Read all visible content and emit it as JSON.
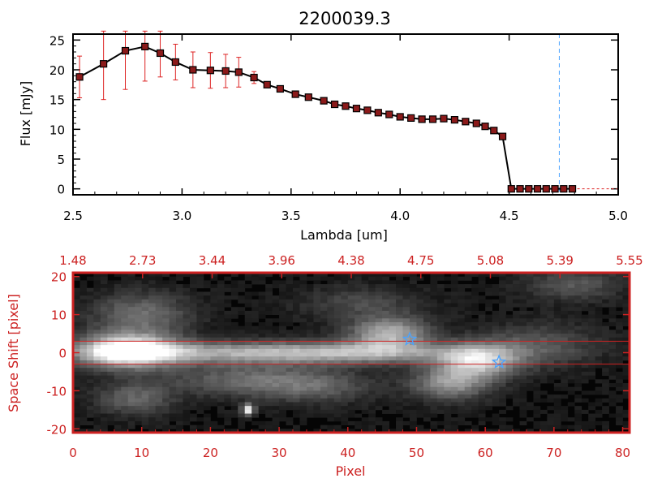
{
  "chart_data": [
    {
      "type": "line",
      "title": "2200039.3",
      "xlabel": "Lambda [um]",
      "ylabel": "Flux [mJy]",
      "xlim": [
        2.5,
        5.0
      ],
      "ylim": [
        -1,
        26
      ],
      "x_ticks": [
        "2.5",
        "3.0",
        "3.5",
        "4.0",
        "4.5",
        "5.0"
      ],
      "y_ticks": [
        "0",
        "5",
        "10",
        "15",
        "20",
        "25"
      ],
      "x": [
        2.53,
        2.64,
        2.74,
        2.83,
        2.9,
        2.97,
        3.05,
        3.13,
        3.2,
        3.26,
        3.33,
        3.39,
        3.45,
        3.52,
        3.58,
        3.65,
        3.7,
        3.75,
        3.8,
        3.85,
        3.9,
        3.95,
        4.0,
        4.05,
        4.1,
        4.15,
        4.2,
        4.25,
        4.3,
        4.35,
        4.39,
        4.43,
        4.47,
        4.51,
        4.55,
        4.59,
        4.63,
        4.67,
        4.71,
        4.75,
        4.79
      ],
      "values": [
        18.8,
        21.0,
        23.2,
        23.9,
        22.8,
        21.3,
        20.0,
        19.9,
        19.8,
        19.6,
        18.7,
        17.5,
        16.8,
        15.9,
        15.4,
        14.8,
        14.2,
        13.9,
        13.5,
        13.2,
        12.8,
        12.5,
        12.1,
        11.9,
        11.7,
        11.7,
        11.8,
        11.6,
        11.3,
        11.0,
        10.5,
        9.8,
        8.8,
        0,
        0,
        0,
        0,
        0,
        0,
        0,
        0
      ],
      "errors": [
        3.5,
        6.0,
        6.5,
        5.8,
        4.0,
        3.0,
        3.0,
        3.0,
        2.8,
        2.5,
        1.0,
        0.5,
        0.5,
        0.5,
        0.4,
        0.4,
        0.4,
        0.4,
        0.4,
        0.4,
        0.4,
        0.4,
        0.4,
        0.4,
        0.4,
        0.4,
        0.4,
        0.4,
        0.4,
        0.4,
        0.4,
        0.4,
        0.4,
        0.2,
        0.2,
        0.2,
        0.2,
        0.2,
        0.2,
        0.2,
        0.2
      ],
      "vline_x": 4.73,
      "grid": false,
      "colors": {
        "line": "#000000",
        "marker": "#8b1a1a",
        "error": "#dd2222",
        "vline": "#4aa3ff"
      }
    },
    {
      "type": "heatmap",
      "xlabel": "Pixel",
      "ylabel": "Space Shift [pixel]",
      "xlim": [
        0,
        81
      ],
      "ylim": [
        -21,
        21
      ],
      "x_ticks": [
        "0",
        "10",
        "20",
        "30",
        "40",
        "50",
        "60",
        "70",
        "80"
      ],
      "y_ticks": [
        "-20",
        "-10",
        "0",
        "10",
        "20"
      ],
      "top_ticks": [
        "1.48",
        "2.73",
        "3.44",
        "3.96",
        "4.38",
        "4.75",
        "5.08",
        "5.39",
        "5.55"
      ],
      "hlines": [
        3,
        -3
      ],
      "stars": [
        {
          "x": 49,
          "y": 3.5
        },
        {
          "x": 62,
          "y": -2.5
        }
      ],
      "blobs": [
        {
          "x": 8,
          "y": 0.5,
          "sx": 5,
          "sy": 3,
          "a": 1.0
        },
        {
          "x": 25,
          "y": 0,
          "sx": 15,
          "sy": 2,
          "a": 0.55
        },
        {
          "x": 44,
          "y": 0,
          "sx": 10,
          "sy": 2,
          "a": 0.35
        },
        {
          "x": 46,
          "y": 5,
          "sx": 4,
          "sy": 3,
          "a": 0.6
        },
        {
          "x": 59,
          "y": -2,
          "sx": 4,
          "sy": 3,
          "a": 0.7
        },
        {
          "x": 55,
          "y": -8,
          "sx": 4,
          "sy": 3,
          "a": 0.5
        },
        {
          "x": 10,
          "y": 10,
          "sx": 5,
          "sy": 4,
          "a": 0.35
        },
        {
          "x": 25,
          "y": -7,
          "sx": 8,
          "sy": 3,
          "a": 0.3
        },
        {
          "x": 9,
          "y": -12,
          "sx": 4,
          "sy": 3,
          "a": 0.3
        },
        {
          "x": 35,
          "y": -9,
          "sx": 6,
          "sy": 3,
          "a": 0.25
        },
        {
          "x": 68,
          "y": 2,
          "sx": 6,
          "sy": 4,
          "a": 0.25
        },
        {
          "x": 73,
          "y": 18,
          "sx": 5,
          "sy": 3,
          "a": 0.25
        },
        {
          "x": 42,
          "y": 13,
          "sx": 6,
          "sy": 3,
          "a": 0.2
        },
        {
          "x": 25.5,
          "y": -15,
          "sx": 0.6,
          "sy": 1.0,
          "a": 0.9
        }
      ],
      "colors": {
        "frame": "#cc2222",
        "hline": "#cc2222",
        "star": "#4aa3ff"
      }
    }
  ]
}
